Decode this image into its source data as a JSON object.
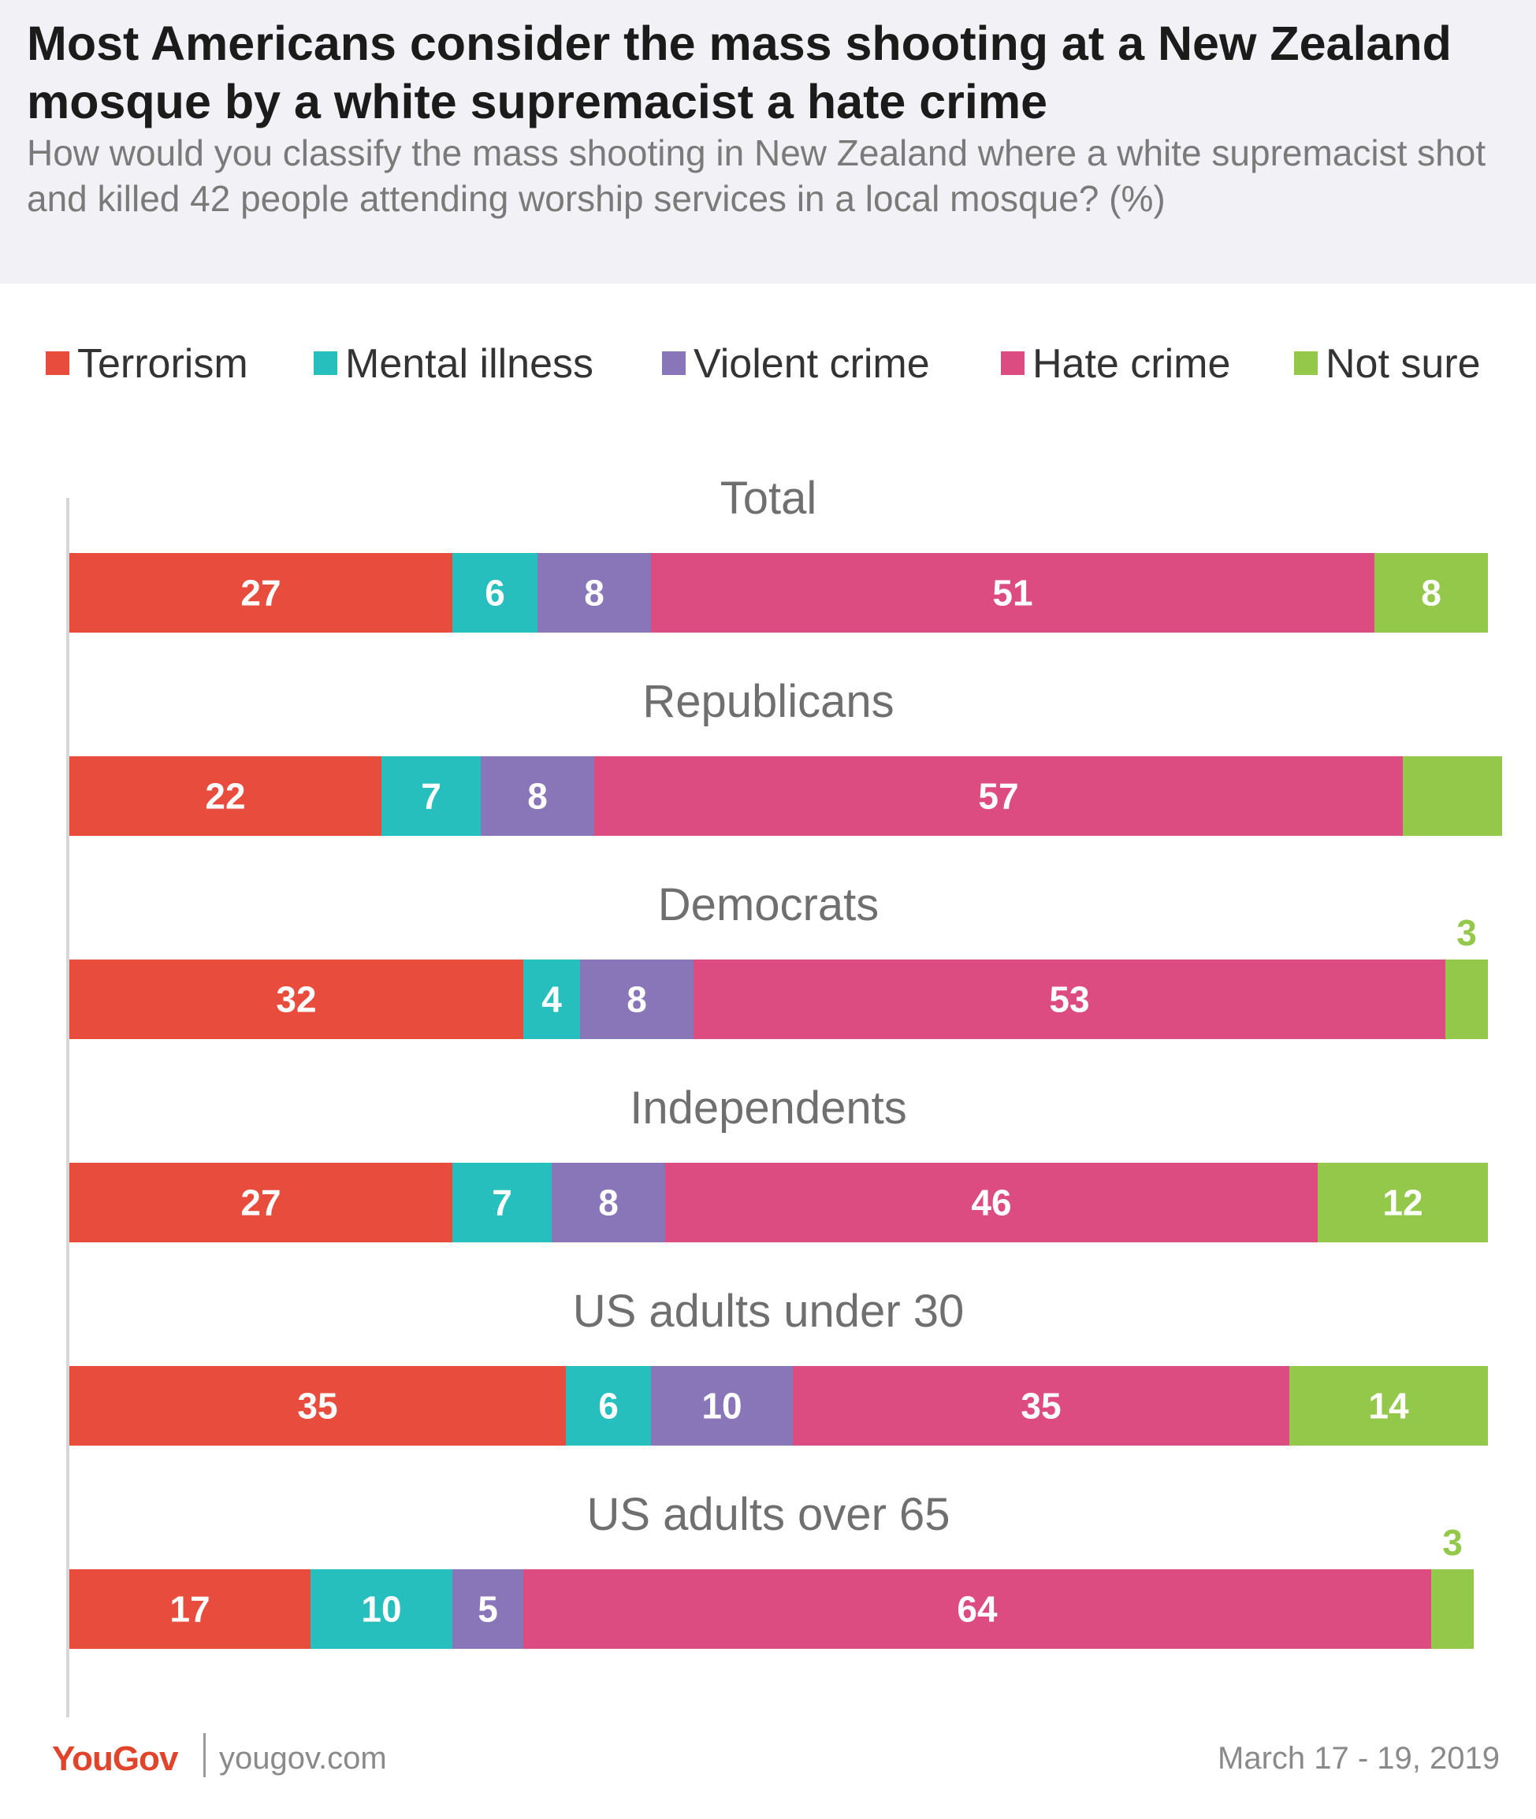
{
  "header": {
    "title": "Most Americans consider the mass shooting at a New Zealand mosque by a white supremacist a hate crime",
    "subtitle": "How would you classify the mass shooting in New Zealand where a white supremacist shot and killed 42 people attending worship services in a local mosque? (%)"
  },
  "colors": {
    "terrorism": "#e84c3d",
    "mental_illness": "#27bfbd",
    "violent_crime": "#8876b8",
    "hate_crime": "#dc4c81",
    "not_sure": "#93c84b"
  },
  "chart_data": {
    "type": "bar",
    "orientation": "horizontal",
    "stacked": true,
    "unit": "%",
    "xlim": [
      0,
      100
    ],
    "legend": [
      "Terrorism",
      "Mental illness",
      "Violent crime",
      "Hate crime",
      "Not sure"
    ],
    "categories": [
      "Total",
      "Republicans",
      "Democrats",
      "Independents",
      "US adults under 30",
      "US adults over 65"
    ],
    "series": [
      {
        "name": "Terrorism",
        "values": [
          27,
          22,
          32,
          27,
          35,
          17
        ]
      },
      {
        "name": "Mental illness",
        "values": [
          6,
          7,
          4,
          7,
          6,
          10
        ]
      },
      {
        "name": "Violent crime",
        "values": [
          8,
          8,
          8,
          8,
          10,
          5
        ]
      },
      {
        "name": "Hate crime",
        "values": [
          51,
          57,
          53,
          46,
          35,
          64
        ]
      },
      {
        "name": "Not sure",
        "values": [
          8,
          7,
          3,
          12,
          14,
          3
        ]
      }
    ],
    "data_labels": [
      [
        "27",
        "6",
        "8",
        "51",
        "8"
      ],
      [
        "22",
        "7",
        "8",
        "57",
        ""
      ],
      [
        "32",
        "4",
        "8",
        "53",
        "3"
      ],
      [
        "27",
        "7",
        "8",
        "46",
        "12"
      ],
      [
        "35",
        "6",
        "10",
        "35",
        "14"
      ],
      [
        "17",
        "10",
        "5",
        "64",
        "3"
      ]
    ]
  },
  "footer": {
    "brand": "YouGov",
    "url": "yougov.com",
    "date": "March 17 - 19, 2019"
  }
}
